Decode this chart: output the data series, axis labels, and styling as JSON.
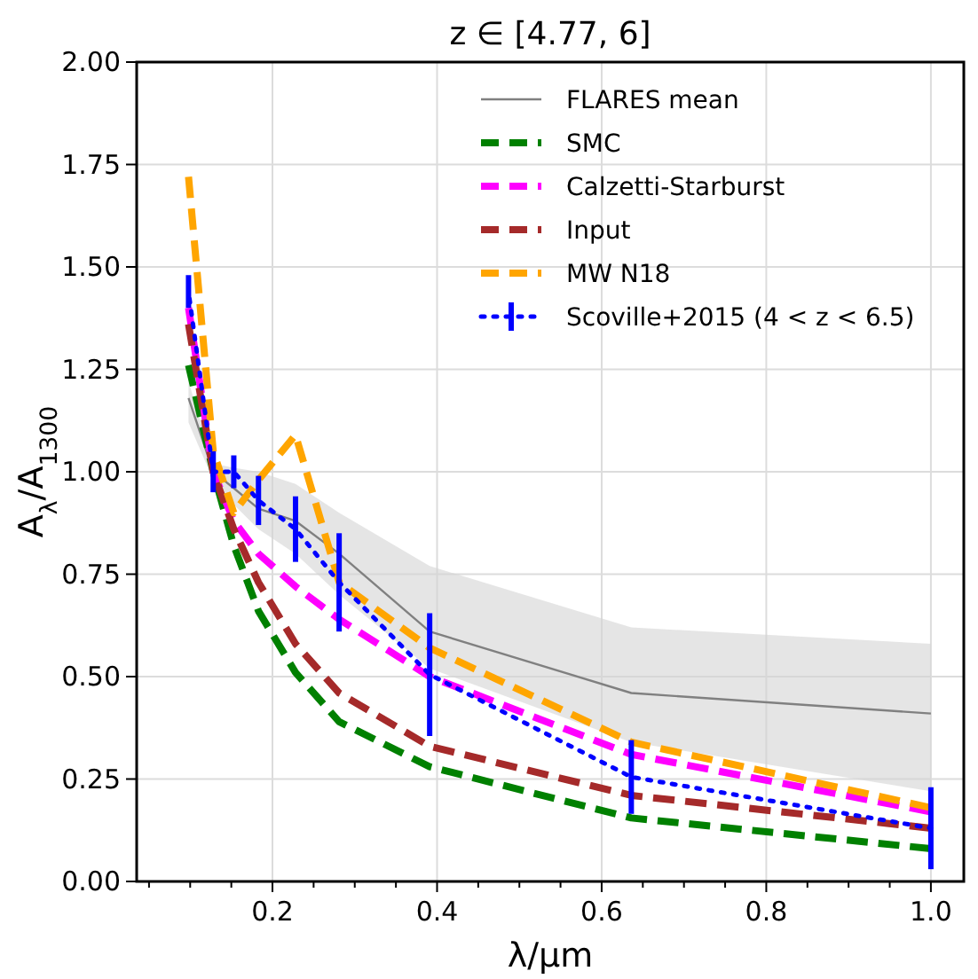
{
  "chart_data": {
    "type": "line",
    "title": "z ∈ [4.77, 6]",
    "xlabel": "λ/μm",
    "ylabel": "A$_{λ}$/A$_{1300}$",
    "x": [
      0.098,
      0.128,
      0.153,
      0.183,
      0.228,
      0.281,
      0.391,
      0.636,
      1.0
    ],
    "series": [
      {
        "name": "FLARES mean",
        "color": "#808080",
        "line_style": "solid",
        "marker": "none",
        "values": [
          1.18,
          1.0,
          0.96,
          0.91,
          0.88,
          0.8,
          0.61,
          0.46,
          0.41
        ],
        "lower": [
          1.12,
          0.98,
          0.92,
          0.86,
          0.8,
          0.7,
          0.52,
          0.34,
          0.22
        ],
        "upper": [
          1.22,
          1.02,
          1.01,
          1.0,
          0.97,
          0.9,
          0.77,
          0.62,
          0.58
        ]
      },
      {
        "name": "SMC",
        "color": "#008000",
        "line_style": "dashed",
        "marker": "none",
        "values": [
          1.26,
          1.0,
          0.82,
          0.66,
          0.51,
          0.39,
          0.28,
          0.155,
          0.08
        ]
      },
      {
        "name": "Calzetti-Starburst",
        "color": "#ff00ff",
        "line_style": "dashed",
        "marker": "none",
        "values": [
          1.4,
          1.0,
          0.88,
          0.8,
          0.72,
          0.64,
          0.5,
          0.31,
          0.17
        ]
      },
      {
        "name": "Input",
        "color": "#a52a2a",
        "line_style": "dashed",
        "marker": "none",
        "values": [
          1.36,
          1.0,
          0.86,
          0.73,
          0.58,
          0.46,
          0.33,
          0.21,
          0.13
        ]
      },
      {
        "name": "MW N18",
        "color": "#ffa500",
        "line_style": "dashed",
        "marker": "none",
        "values": [
          1.72,
          1.05,
          0.9,
          0.98,
          1.09,
          0.73,
          0.57,
          0.34,
          0.18
        ]
      },
      {
        "name": "Scoville+2015 (4 < z < 6.5)",
        "color": "#0000ff",
        "line_style": "dotted",
        "marker": "none",
        "values": [
          1.44,
          1.0,
          1.0,
          0.93,
          0.86,
          0.73,
          0.505,
          0.255,
          0.13
        ],
        "errors": [
          0.04,
          0.05,
          0.04,
          0.06,
          0.08,
          0.12,
          0.15,
          0.09,
          0.1
        ]
      }
    ],
    "xlim": [
      0.035,
      1.04
    ],
    "ylim": [
      0,
      2
    ],
    "xticks": [
      {
        "value": 0.05,
        "label": null
      },
      {
        "value": 0.1,
        "label": null
      },
      {
        "value": 0.15,
        "label": null
      },
      0.2,
      {
        "value": 0.25,
        "label": null
      },
      {
        "value": 0.3,
        "label": null
      },
      {
        "value": 0.35,
        "label": null
      },
      0.4,
      {
        "value": 0.45,
        "label": null
      },
      {
        "value": 0.5,
        "label": null
      },
      {
        "value": 0.55,
        "label": null
      },
      0.6,
      {
        "value": 0.65,
        "label": null
      },
      {
        "value": 0.7,
        "label": null
      },
      {
        "value": 0.75,
        "label": null
      },
      0.8,
      {
        "value": 0.85,
        "label": null
      },
      {
        "value": 0.9,
        "label": null
      },
      {
        "value": 0.95,
        "label": null
      },
      {
        "value": 1.0,
        "label": "1.0"
      }
    ],
    "yticks": [
      {
        "value": 0,
        "label": "0.00"
      },
      {
        "value": 0.25,
        "label": "0.25"
      },
      {
        "value": 0.5,
        "label": "0.50"
      },
      {
        "value": 0.75,
        "label": "0.75"
      },
      {
        "value": 1,
        "label": "1.00"
      },
      {
        "value": 1.25,
        "label": "1.25"
      },
      {
        "value": 1.5,
        "label": "1.50"
      },
      {
        "value": 1.75,
        "label": "1.75"
      },
      {
        "value": 2,
        "label": "2.00"
      }
    ],
    "grid": true,
    "legend": "top right"
  }
}
